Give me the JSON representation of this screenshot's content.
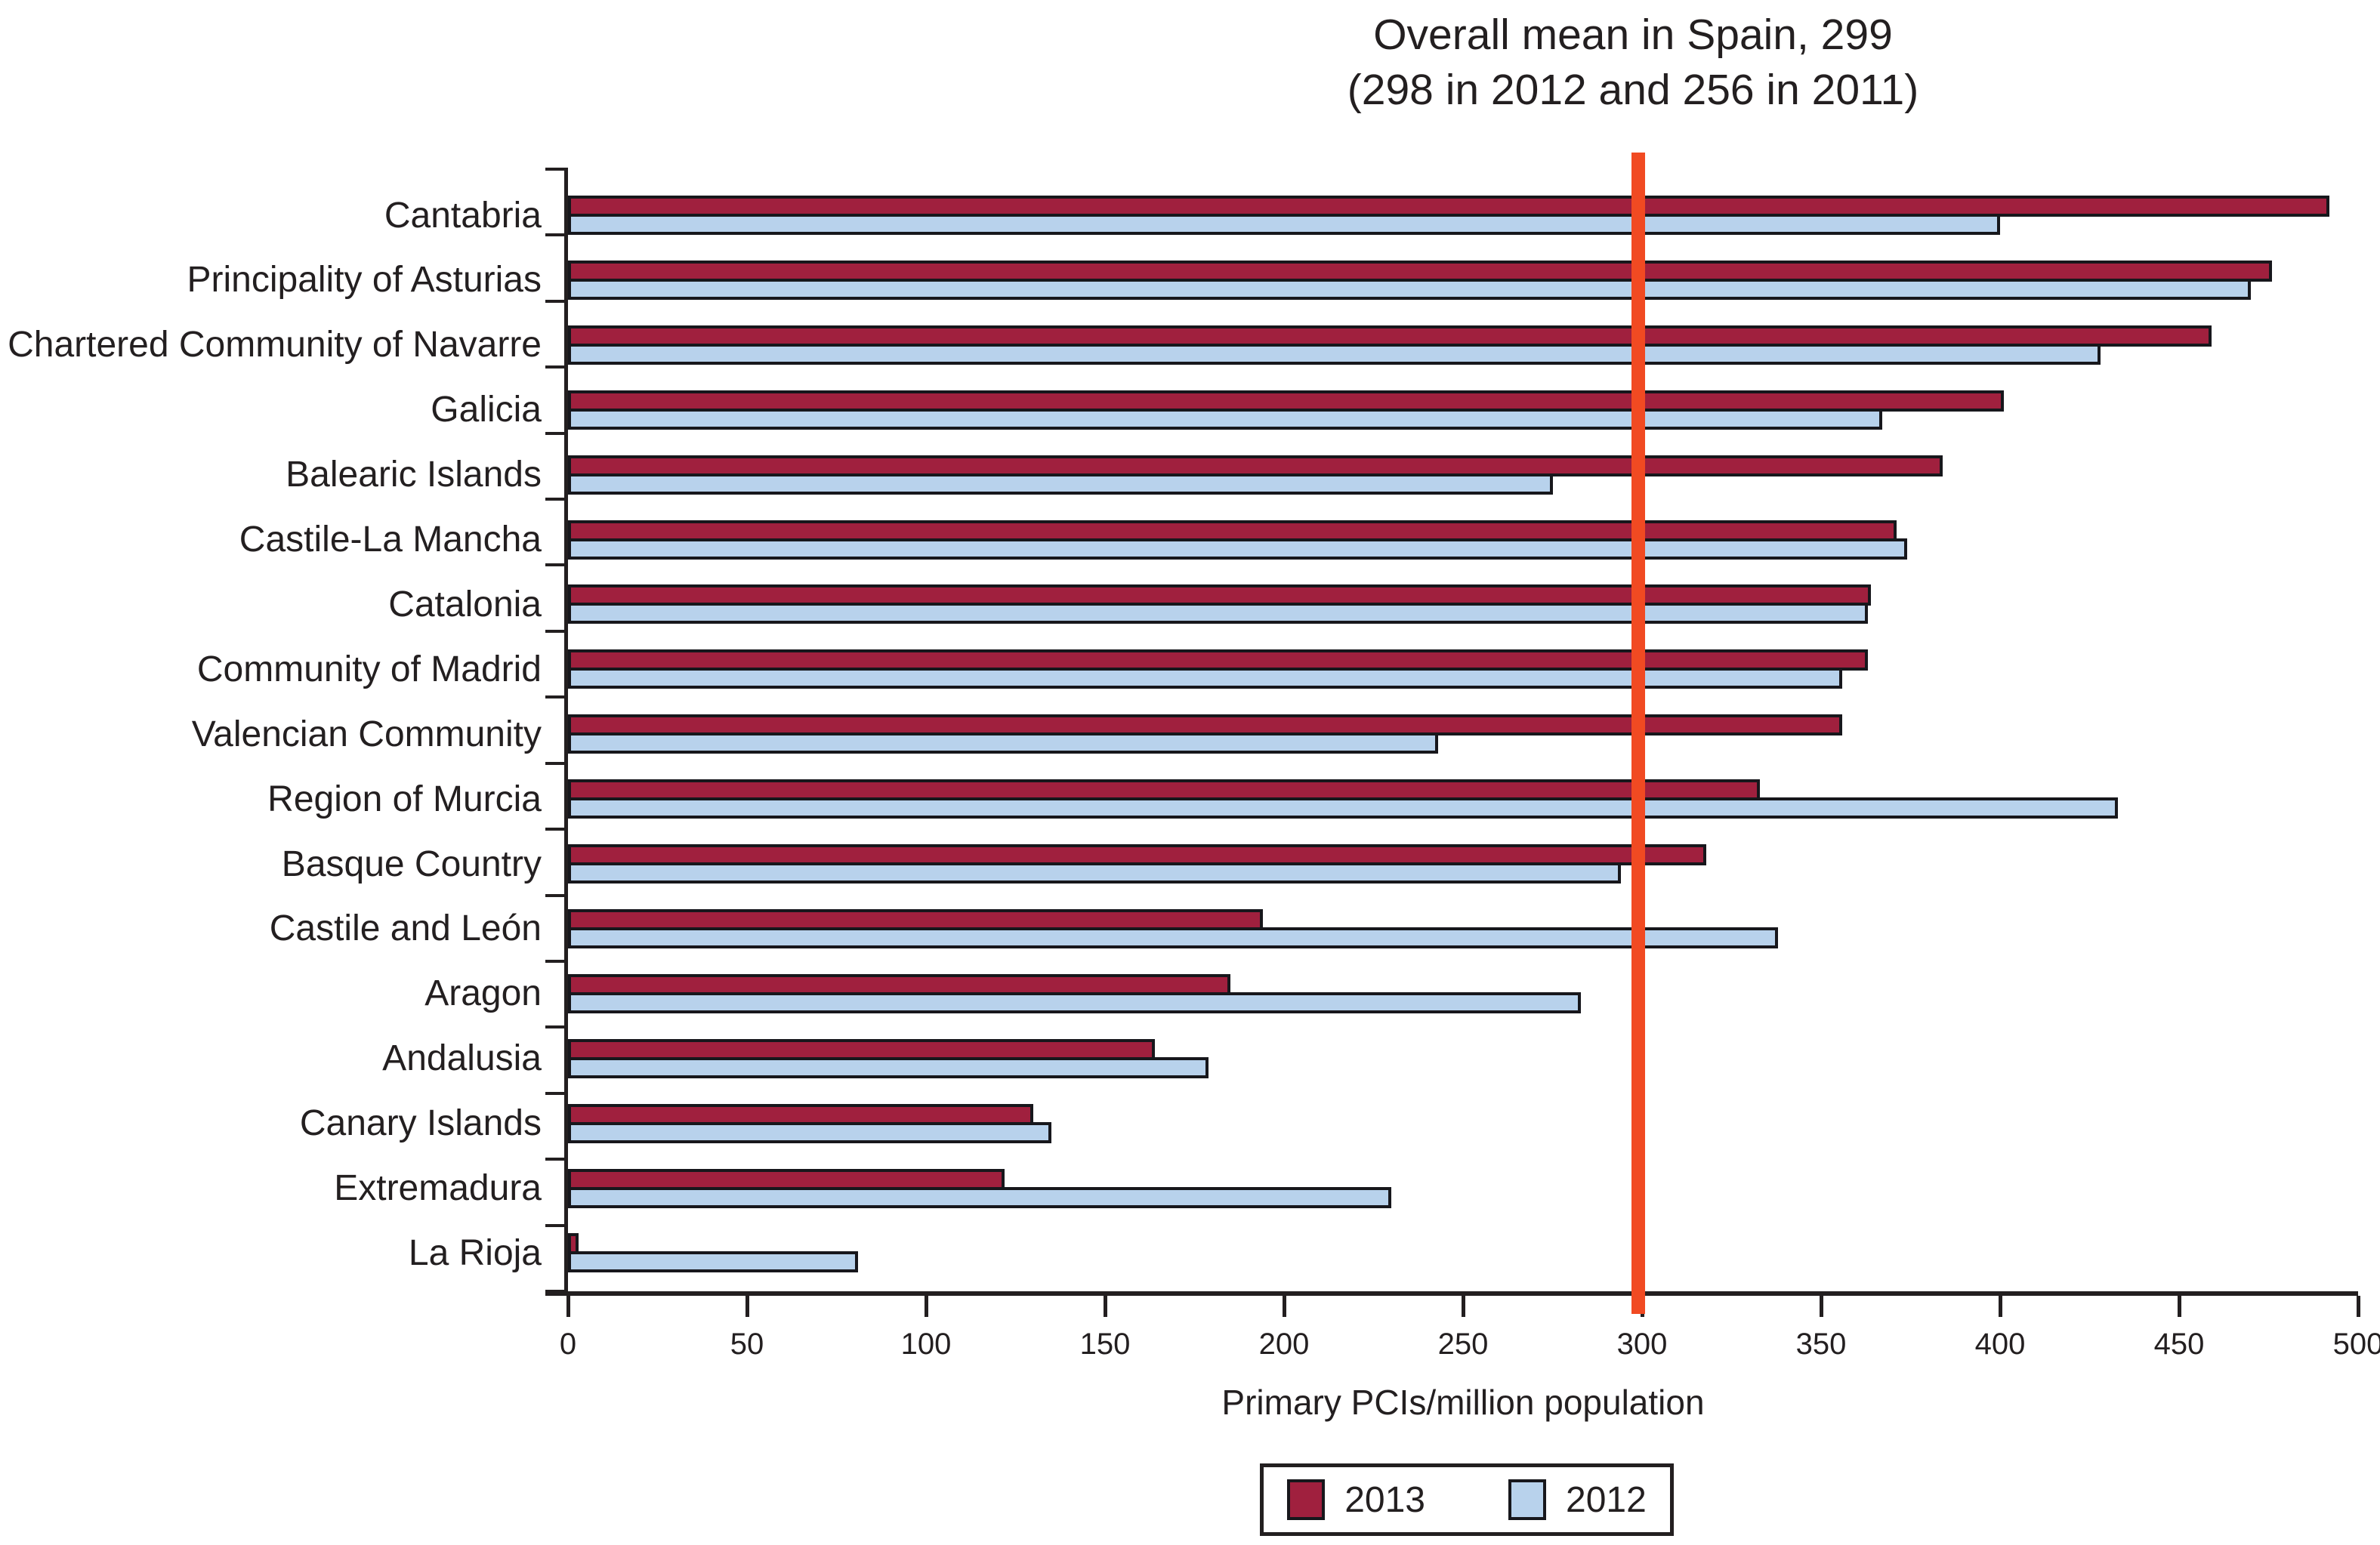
{
  "chart_data": {
    "type": "bar",
    "orientation": "horizontal",
    "title_line1": "Overall mean in Spain, 299",
    "title_line2": "(298 in 2012 and 256 in 2011)",
    "xlabel": "Primary PCIs/million population",
    "xlim": [
      0,
      500
    ],
    "xticks": [
      0,
      50,
      100,
      150,
      200,
      250,
      300,
      350,
      400,
      450,
      500
    ],
    "grid": false,
    "legend_position": "bottom-center",
    "categories": [
      "Cantabria",
      "Principality of Asturias",
      "Chartered Community of Navarre",
      "Galicia",
      "Balearic Islands",
      "Castile-La Mancha",
      "Catalonia",
      "Community of Madrid",
      "Valencian Community",
      "Region of Murcia",
      "Basque Country",
      "Castile and León",
      "Aragon",
      "Andalusia",
      "Canary Islands",
      "Extremadura",
      "La Rioja"
    ],
    "series": [
      {
        "name": "2013",
        "color": "#a0203e",
        "values": [
          492,
          476,
          459,
          401,
          384,
          371,
          364,
          363,
          356,
          333,
          318,
          194,
          185,
          164,
          130,
          122,
          3
        ]
      },
      {
        "name": "2012",
        "color": "#b8d2ec",
        "values": [
          400,
          470,
          428,
          367,
          275,
          374,
          363,
          356,
          243,
          433,
          294,
          338,
          283,
          179,
          135,
          230,
          81
        ]
      }
    ],
    "mean_line": {
      "value": 299,
      "color": "#f14a22"
    },
    "colors": {
      "axis": "#231f20",
      "bar_border": "#17171c",
      "background": "#ffffff"
    }
  }
}
